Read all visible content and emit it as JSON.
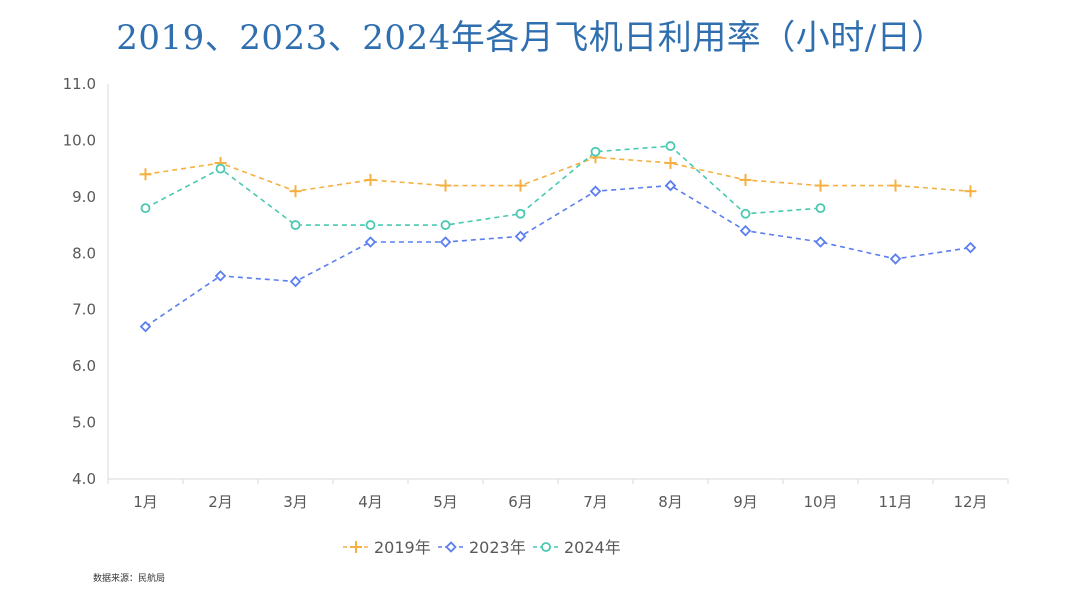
{
  "chart_data": {
    "type": "line",
    "title": "2019、2023、2024年各月飞机日利用率（小时/日）",
    "categories": [
      "1月",
      "2月",
      "3月",
      "4月",
      "5月",
      "6月",
      "7月",
      "8月",
      "9月",
      "10月",
      "11月",
      "12月"
    ],
    "ylim": [
      4.0,
      11.0
    ],
    "yticks": [
      "4.0",
      "5.0",
      "6.0",
      "7.0",
      "8.0",
      "9.0",
      "10.0",
      "11.0"
    ],
    "grid": false,
    "legend": "bottom",
    "series": [
      {
        "name": "2019年",
        "color": "#f5b041",
        "marker": "plus",
        "values": [
          9.4,
          9.6,
          9.1,
          9.3,
          9.2,
          9.2,
          9.7,
          9.6,
          9.3,
          9.2,
          9.2,
          9.1
        ]
      },
      {
        "name": "2023年",
        "color": "#5b7ef0",
        "marker": "diamond",
        "values": [
          6.7,
          7.6,
          7.5,
          8.2,
          8.2,
          8.3,
          9.1,
          9.2,
          8.4,
          8.2,
          7.9,
          8.1
        ]
      },
      {
        "name": "2024年",
        "color": "#48c9b0",
        "marker": "circle",
        "values": [
          8.8,
          9.5,
          8.5,
          8.5,
          8.5,
          8.7,
          9.8,
          9.9,
          8.7,
          8.8,
          null,
          null
        ]
      }
    ]
  },
  "source": "数据来源：民航局"
}
